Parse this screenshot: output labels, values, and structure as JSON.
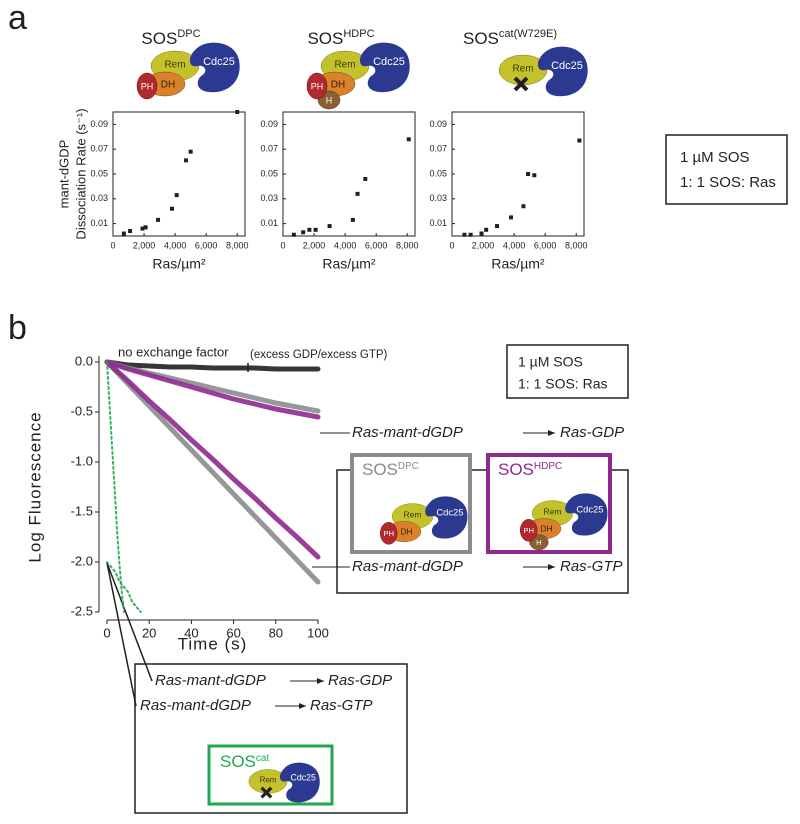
{
  "panel_labels": [
    "a",
    "b"
  ],
  "cartoon_labels": {
    "rem": "Rem",
    "cdc25": "Cdc25",
    "ph": "PH",
    "dh": "DH",
    "h": "H"
  },
  "panel_a_box": [
    "1 µM SOS",
    "1: 1 SOS: Ras"
  ],
  "panel_b_annotations": {
    "no_exchange": "no exchange factor",
    "excess": "(excess GDP/excess GTP)",
    "sos_conc": "1 µM SOS",
    "ratio": "1: 1 SOS: Ras",
    "reactant": "Ras-mant-dGDP",
    "gdp": "Ras-GDP",
    "gtp": "Ras-GTP"
  },
  "panel_b_legend": [
    {
      "title": "SOS",
      "title_sup": "DPC"
    },
    {
      "title": "SOS",
      "title_sup": "HDPC"
    },
    {
      "title": "SOS",
      "title_sup": "cat"
    }
  ],
  "chart_data": [
    {
      "type": "scatter",
      "title": "SOS",
      "title_sup": "DPC",
      "ylabel_lines": [
        "mant-dGDP",
        "Dissociation Rate (s⁻¹)"
      ],
      "xlabel": "Ras/µm²",
      "x": [
        700,
        1100,
        1900,
        2100,
        2900,
        3800,
        4100,
        4700,
        5000,
        8000
      ],
      "values": [
        0.002,
        0.004,
        0.006,
        0.007,
        0.013,
        0.022,
        0.033,
        0.061,
        0.068,
        0.1
      ],
      "color": "#231f20",
      "xlim": [
        0,
        8500
      ],
      "ylim": [
        0,
        0.1
      ],
      "xticks": [
        0,
        {
          "value": 2000,
          "label": "2,000"
        },
        {
          "value": 4000,
          "label": "4,000"
        },
        {
          "value": 6000,
          "label": "6,000"
        },
        {
          "value": 8000,
          "label": "8,000"
        }
      ],
      "yticks": [
        0.01,
        0.03,
        0.05,
        0.07,
        0.09
      ]
    },
    {
      "type": "scatter",
      "title": "SOS",
      "title_sup": "HDPC",
      "xlabel": "Ras/µm²",
      "x": [
        700,
        1300,
        1700,
        2100,
        3000,
        4500,
        4800,
        5300,
        8100
      ],
      "values": [
        0.001,
        0.003,
        0.005,
        0.005,
        0.008,
        0.013,
        0.034,
        0.046,
        0.078
      ],
      "color": "#231f20",
      "xlim": [
        0,
        8500
      ],
      "ylim": [
        0,
        0.1
      ],
      "xticks": [
        0,
        {
          "value": 2000,
          "label": "2,000"
        },
        {
          "value": 4000,
          "label": "4,000"
        },
        {
          "value": 6000,
          "label": "6,000"
        },
        {
          "value": 8000,
          "label": "8,000"
        }
      ],
      "yticks": [
        0.01,
        0.03,
        0.05,
        0.07,
        0.09
      ]
    },
    {
      "type": "scatter",
      "title": "SOS",
      "title_sup": "cat(W729E)",
      "xlabel": "Ras/µm²",
      "x": [
        800,
        1200,
        1900,
        2200,
        2900,
        3800,
        4600,
        4900,
        5300,
        8200
      ],
      "values": [
        0.001,
        0.001,
        0.002,
        0.005,
        0.008,
        0.015,
        0.024,
        0.05,
        0.049,
        0.077
      ],
      "color": "#231f20",
      "xlim": [
        0,
        8500
      ],
      "ylim": [
        0,
        0.1
      ],
      "xticks": [
        0,
        {
          "value": 2000,
          "label": "2,000"
        },
        {
          "value": 4000,
          "label": "4,000"
        },
        {
          "value": 6000,
          "label": "6,000"
        },
        {
          "value": 8000,
          "label": "8,000"
        }
      ],
      "yticks": [
        0.01,
        0.03,
        0.05,
        0.07,
        0.09
      ]
    },
    {
      "type": "line",
      "xlabel": "Time (s)",
      "ylabel": "Log Fluorescence",
      "xlim": [
        0,
        100
      ],
      "ylim": [
        -2.5,
        0
      ],
      "xticks": [
        0,
        20,
        40,
        60,
        80,
        100
      ],
      "yticks": [
        {
          "value": 0,
          "label": "0.0"
        },
        -0.5,
        {
          "value": -1,
          "label": "-1.0"
        },
        -1.5,
        {
          "value": -2,
          "label": "-2.0"
        },
        -2.5
      ],
      "series": [
        {
          "color": "#231f20",
          "x": [
            0,
            10,
            20,
            30,
            40,
            50,
            60,
            70,
            80,
            90,
            100
          ],
          "values": [
            0,
            -0.03,
            -0.04,
            -0.05,
            -0.05,
            -0.06,
            -0.06,
            -0.06,
            -0.07,
            -0.07,
            -0.07
          ]
        },
        {
          "color": "#8a8c8e",
          "x": [
            0,
            10,
            20,
            30,
            40,
            50,
            60,
            70,
            80,
            90,
            100
          ],
          "values": [
            0,
            -0.06,
            -0.11,
            -0.16,
            -0.21,
            -0.26,
            -0.31,
            -0.36,
            -0.41,
            -0.45,
            -0.49
          ]
        },
        {
          "color": "#8e2a8e",
          "x": [
            0,
            10,
            20,
            30,
            40,
            50,
            60,
            70,
            80,
            90,
            100
          ],
          "values": [
            0,
            -0.07,
            -0.13,
            -0.19,
            -0.25,
            -0.31,
            -0.37,
            -0.42,
            -0.47,
            -0.51,
            -0.55
          ]
        },
        {
          "color": "#8a8c8e",
          "x": [
            0,
            10,
            20,
            30,
            40,
            50,
            60,
            70,
            80,
            90,
            100
          ],
          "values": [
            0,
            -0.22,
            -0.44,
            -0.66,
            -0.88,
            -1.1,
            -1.32,
            -1.54,
            -1.76,
            -1.98,
            -2.2
          ]
        },
        {
          "color": "#8e2a8e",
          "x": [
            0,
            10,
            20,
            30,
            40,
            50,
            60,
            70,
            80,
            90,
            100
          ],
          "values": [
            0,
            -0.19,
            -0.39,
            -0.58,
            -0.78,
            -0.97,
            -1.17,
            -1.36,
            -1.56,
            -1.75,
            -1.95
          ]
        },
        {
          "color": "#1fa84f",
          "x": [
            0,
            1,
            2,
            3,
            4,
            5,
            6,
            7,
            8
          ],
          "values": [
            0,
            -0.35,
            -0.7,
            -1.05,
            -1.4,
            -1.75,
            -2.05,
            -2.3,
            -2.5
          ]
        },
        {
          "color": "#1fa84f",
          "x": [
            0,
            2,
            4,
            6,
            8,
            10,
            12,
            14,
            16
          ],
          "values": [
            -2,
            -2.05,
            -2.1,
            -2.2,
            -2.25,
            -2.3,
            -2.4,
            -2.45,
            -2.5
          ]
        }
      ]
    }
  ]
}
